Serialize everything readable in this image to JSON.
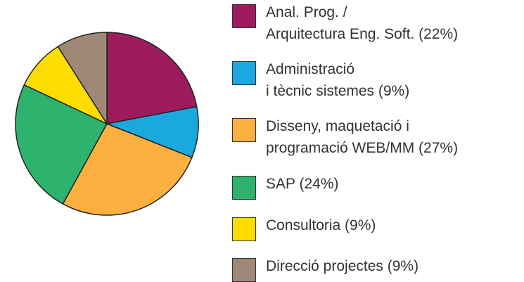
{
  "chart_data": {
    "type": "pie",
    "categories": [
      "Anal. Prog. /\nArquitectura Eng. Soft. (22%)",
      "Administració\ni tècnic sistemes (9%)",
      "Disseny, maquetació i\nprogramació WEB/MM (27%)",
      "SAP (24%)",
      "Consultoria (9%)",
      "Direcció projectes (9%)"
    ],
    "values": [
      22,
      9,
      27,
      24,
      9,
      9
    ],
    "colors": [
      "#9e1c5c",
      "#1aa8de",
      "#fbb040",
      "#2db36e",
      "#ffdd00",
      "#a08878"
    ]
  }
}
